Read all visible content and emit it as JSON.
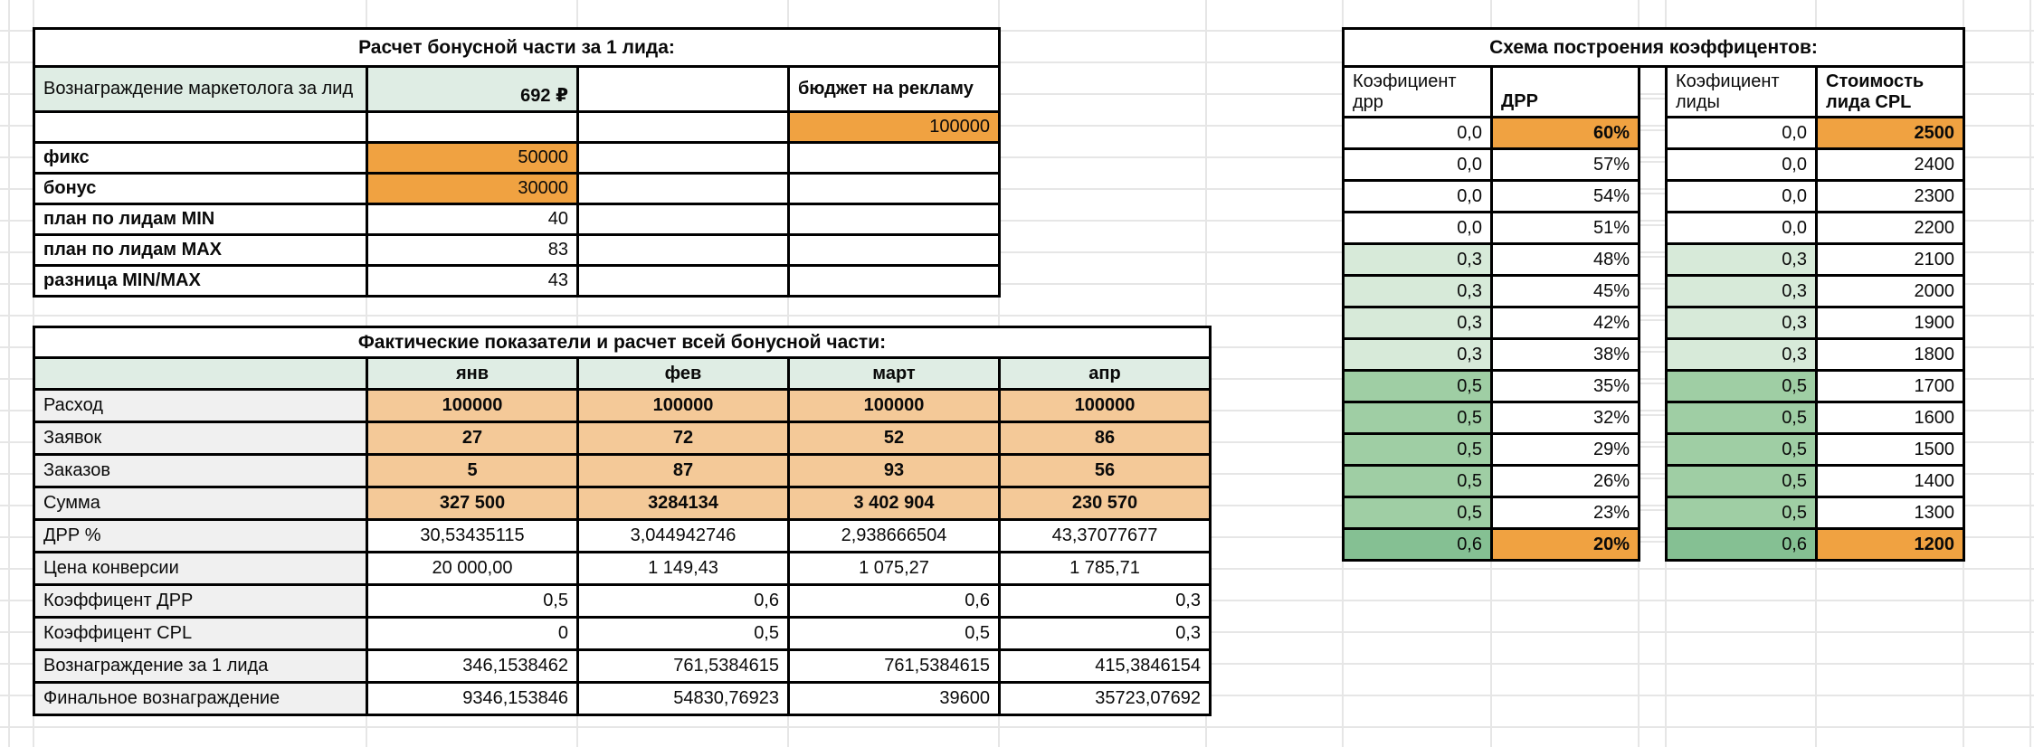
{
  "colors": {
    "orange": "#F0A241",
    "peach": "#F4C998",
    "pale_green": "#DFEDE4",
    "green_light": "#D7EAD9",
    "green_mid": "#9FCEA4",
    "green_dark": "#85C093",
    "label_gray": "#F0F0F0"
  },
  "bonus_table": {
    "title": "Расчет бонусной части за 1 лида:",
    "rows": [
      [
        {
          "t": "Вознаграждение маркетолога за лид",
          "bg": "pale_green"
        },
        {
          "t": "692 ₽",
          "b": 1,
          "bg": "pale_green",
          "al": "right",
          "va": "bottom"
        },
        {
          "t": ""
        },
        {
          "t": "бюджет на рекламу",
          "b": 1
        }
      ],
      [
        {
          "t": ""
        },
        {
          "t": ""
        },
        {
          "t": ""
        },
        {
          "t": "100000",
          "bg": "orange",
          "al": "right"
        }
      ],
      [
        {
          "t": "фикс",
          "b": 1
        },
        {
          "t": "50000",
          "bg": "orange",
          "al": "right"
        },
        {
          "t": ""
        },
        {
          "t": ""
        }
      ],
      [
        {
          "t": "бонус",
          "b": 1
        },
        {
          "t": "30000",
          "bg": "orange",
          "al": "right"
        },
        {
          "t": ""
        },
        {
          "t": ""
        }
      ],
      [
        {
          "t": "план по лидам MIN",
          "b": 1
        },
        {
          "t": "40",
          "al": "right"
        },
        {
          "t": ""
        },
        {
          "t": ""
        }
      ],
      [
        {
          "t": "план по лидам MAX",
          "b": 1
        },
        {
          "t": "83",
          "al": "right"
        },
        {
          "t": ""
        },
        {
          "t": ""
        }
      ],
      [
        {
          "t": "разница MIN/MAX",
          "b": 1
        },
        {
          "t": "43",
          "al": "right"
        },
        {
          "t": ""
        },
        {
          "t": ""
        }
      ]
    ]
  },
  "actuals_table": {
    "title": "Фактические показатели и расчет всей бонусной части:",
    "rows": [
      [
        {
          "t": "",
          "bg": "pale_green"
        },
        {
          "t": "янв",
          "b": 1,
          "bg": "pale_green",
          "al": "center"
        },
        {
          "t": "фев",
          "b": 1,
          "bg": "pale_green",
          "al": "center"
        },
        {
          "t": "март",
          "b": 1,
          "bg": "pale_green",
          "al": "center"
        },
        {
          "t": "апр",
          "b": 1,
          "bg": "pale_green",
          "al": "center"
        }
      ],
      [
        {
          "t": "Расход",
          "bg": "label_gray"
        },
        {
          "t": "100000",
          "b": 1,
          "bg": "peach",
          "al": "center"
        },
        {
          "t": "100000",
          "b": 1,
          "bg": "peach",
          "al": "center"
        },
        {
          "t": "100000",
          "b": 1,
          "bg": "peach",
          "al": "center"
        },
        {
          "t": "100000",
          "b": 1,
          "bg": "peach",
          "al": "center"
        }
      ],
      [
        {
          "t": "Заявок",
          "bg": "label_gray"
        },
        {
          "t": "27",
          "b": 1,
          "bg": "peach",
          "al": "center"
        },
        {
          "t": "72",
          "b": 1,
          "bg": "peach",
          "al": "center"
        },
        {
          "t": "52",
          "b": 1,
          "bg": "peach",
          "al": "center"
        },
        {
          "t": "86",
          "b": 1,
          "bg": "peach",
          "al": "center"
        }
      ],
      [
        {
          "t": "Заказов",
          "bg": "label_gray"
        },
        {
          "t": "5",
          "b": 1,
          "bg": "peach",
          "al": "center"
        },
        {
          "t": "87",
          "b": 1,
          "bg": "peach",
          "al": "center"
        },
        {
          "t": "93",
          "b": 1,
          "bg": "peach",
          "al": "center"
        },
        {
          "t": "56",
          "b": 1,
          "bg": "peach",
          "al": "center"
        }
      ],
      [
        {
          "t": "Сумма",
          "bg": "label_gray"
        },
        {
          "t": "327 500",
          "b": 1,
          "bg": "peach",
          "al": "center"
        },
        {
          "t": "3284134",
          "b": 1,
          "bg": "peach",
          "al": "center"
        },
        {
          "t": "3 402 904",
          "b": 1,
          "bg": "peach",
          "al": "center"
        },
        {
          "t": "230 570",
          "b": 1,
          "bg": "peach",
          "al": "center"
        }
      ],
      [
        {
          "t": "ДРР %",
          "bg": "label_gray"
        },
        {
          "t": "30,53435115",
          "al": "center"
        },
        {
          "t": "3,044942746",
          "al": "center"
        },
        {
          "t": "2,938666504",
          "al": "center"
        },
        {
          "t": "43,37077677",
          "al": "center"
        }
      ],
      [
        {
          "t": "Цена конверсии",
          "bg": "label_gray"
        },
        {
          "t": "20 000,00",
          "al": "center"
        },
        {
          "t": "1 149,43",
          "al": "center"
        },
        {
          "t": "1 075,27",
          "al": "center"
        },
        {
          "t": "1 785,71",
          "al": "center"
        }
      ],
      [
        {
          "t": "Коэффицент ДРР",
          "bg": "label_gray"
        },
        {
          "t": "0,5",
          "al": "right"
        },
        {
          "t": "0,6",
          "al": "right"
        },
        {
          "t": "0,6",
          "al": "right"
        },
        {
          "t": "0,3",
          "al": "right"
        }
      ],
      [
        {
          "t": "Коэффицент CPL",
          "bg": "label_gray"
        },
        {
          "t": "0",
          "al": "right"
        },
        {
          "t": "0,5",
          "al": "right"
        },
        {
          "t": "0,5",
          "al": "right"
        },
        {
          "t": "0,3",
          "al": "right"
        }
      ],
      [
        {
          "t": "Вознаграждение за 1 лида",
          "bg": "label_gray"
        },
        {
          "t": "346,1538462",
          "al": "right"
        },
        {
          "t": "761,5384615",
          "al": "right"
        },
        {
          "t": "761,5384615",
          "al": "right"
        },
        {
          "t": "415,3846154",
          "al": "right"
        }
      ],
      [
        {
          "t": "Финальное вознаграждение",
          "bg": "label_gray"
        },
        {
          "t": "9346,153846",
          "al": "right"
        },
        {
          "t": "54830,76923",
          "al": "right"
        },
        {
          "t": "39600",
          "al": "right"
        },
        {
          "t": "35723,07692",
          "al": "right"
        }
      ]
    ]
  },
  "scheme_table": {
    "title": "Схема построения коэффицентов:",
    "drr_block": {
      "rows": [
        [
          {
            "t": "Коэфициент дрр"
          },
          {
            "t": "ДРР",
            "b": 1,
            "va": "bottom"
          }
        ],
        [
          {
            "t": "0,0",
            "al": "right"
          },
          {
            "t": "60%",
            "b": 1,
            "bg": "orange",
            "al": "right"
          }
        ],
        [
          {
            "t": "0,0",
            "al": "right"
          },
          {
            "t": "57%",
            "al": "right"
          }
        ],
        [
          {
            "t": "0,0",
            "al": "right"
          },
          {
            "t": "54%",
            "al": "right"
          }
        ],
        [
          {
            "t": "0,0",
            "al": "right"
          },
          {
            "t": "51%",
            "al": "right"
          }
        ],
        [
          {
            "t": "0,3",
            "bg": "green_light",
            "al": "right"
          },
          {
            "t": "48%",
            "al": "right"
          }
        ],
        [
          {
            "t": "0,3",
            "bg": "green_light",
            "al": "right"
          },
          {
            "t": "45%",
            "al": "right"
          }
        ],
        [
          {
            "t": "0,3",
            "bg": "green_light",
            "al": "right"
          },
          {
            "t": "42%",
            "al": "right"
          }
        ],
        [
          {
            "t": "0,3",
            "bg": "green_light",
            "al": "right"
          },
          {
            "t": "38%",
            "al": "right"
          }
        ],
        [
          {
            "t": "0,5",
            "bg": "green_mid",
            "al": "right"
          },
          {
            "t": "35%",
            "al": "right"
          }
        ],
        [
          {
            "t": "0,5",
            "bg": "green_mid",
            "al": "right"
          },
          {
            "t": "32%",
            "al": "right"
          }
        ],
        [
          {
            "t": "0,5",
            "bg": "green_mid",
            "al": "right"
          },
          {
            "t": "29%",
            "al": "right"
          }
        ],
        [
          {
            "t": "0,5",
            "bg": "green_mid",
            "al": "right"
          },
          {
            "t": "26%",
            "al": "right"
          }
        ],
        [
          {
            "t": "0,5",
            "bg": "green_mid",
            "al": "right"
          },
          {
            "t": "23%",
            "al": "right"
          }
        ],
        [
          {
            "t": "0,6",
            "bg": "green_dark",
            "al": "right"
          },
          {
            "t": "20%",
            "b": 1,
            "bg": "orange",
            "al": "right"
          }
        ]
      ]
    },
    "cpl_block": {
      "rows": [
        [
          {
            "t": "Коэфициент лиды"
          },
          {
            "t": "Стоимость лида CPL",
            "b": 1
          }
        ],
        [
          {
            "t": "0,0",
            "al": "right"
          },
          {
            "t": "2500",
            "b": 1,
            "bg": "orange",
            "al": "right"
          }
        ],
        [
          {
            "t": "0,0",
            "al": "right"
          },
          {
            "t": "2400",
            "al": "right"
          }
        ],
        [
          {
            "t": "0,0",
            "al": "right"
          },
          {
            "t": "2300",
            "al": "right"
          }
        ],
        [
          {
            "t": "0,0",
            "al": "right"
          },
          {
            "t": "2200",
            "al": "right"
          }
        ],
        [
          {
            "t": "0,3",
            "bg": "green_light",
            "al": "right"
          },
          {
            "t": "2100",
            "al": "right"
          }
        ],
        [
          {
            "t": "0,3",
            "bg": "green_light",
            "al": "right"
          },
          {
            "t": "2000",
            "al": "right"
          }
        ],
        [
          {
            "t": "0,3",
            "bg": "green_light",
            "al": "right"
          },
          {
            "t": "1900",
            "al": "right"
          }
        ],
        [
          {
            "t": "0,3",
            "bg": "green_light",
            "al": "right"
          },
          {
            "t": "1800",
            "al": "right"
          }
        ],
        [
          {
            "t": "0,5",
            "bg": "green_mid",
            "al": "right"
          },
          {
            "t": "1700",
            "al": "right"
          }
        ],
        [
          {
            "t": "0,5",
            "bg": "green_mid",
            "al": "right"
          },
          {
            "t": "1600",
            "al": "right"
          }
        ],
        [
          {
            "t": "0,5",
            "bg": "green_mid",
            "al": "right"
          },
          {
            "t": "1500",
            "al": "right"
          }
        ],
        [
          {
            "t": "0,5",
            "bg": "green_mid",
            "al": "right"
          },
          {
            "t": "1400",
            "al": "right"
          }
        ],
        [
          {
            "t": "0,5",
            "bg": "green_mid",
            "al": "right"
          },
          {
            "t": "1300",
            "al": "right"
          }
        ],
        [
          {
            "t": "0,6",
            "bg": "green_dark",
            "al": "right"
          },
          {
            "t": "1200",
            "b": 1,
            "bg": "orange",
            "al": "right"
          }
        ]
      ]
    }
  }
}
